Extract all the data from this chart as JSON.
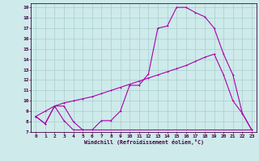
{
  "xlabel": "Windchill (Refroidissement éolien,°C)",
  "bg_color": "#ceeaea",
  "grid_color": "#aacece",
  "line_color": "#aa00aa",
  "xlim": [
    -0.5,
    23.5
  ],
  "ylim": [
    7,
    19.4
  ],
  "xticks": [
    0,
    1,
    2,
    3,
    4,
    5,
    6,
    7,
    8,
    9,
    10,
    11,
    12,
    13,
    14,
    15,
    16,
    17,
    18,
    19,
    20,
    21,
    22,
    23
  ],
  "yticks": [
    7,
    8,
    9,
    10,
    11,
    12,
    13,
    14,
    15,
    16,
    17,
    18,
    19
  ],
  "line1_x": [
    0,
    1,
    2,
    3,
    4,
    5,
    6,
    7,
    8,
    9,
    10,
    11,
    12,
    13,
    14,
    15,
    16,
    17,
    18,
    19,
    20,
    21,
    22,
    23
  ],
  "line1_y": [
    8.5,
    7.8,
    9.5,
    9.5,
    8.0,
    7.2,
    7.2,
    8.1,
    8.1,
    9.0,
    11.5,
    11.5,
    12.6,
    17.0,
    17.2,
    19.0,
    19.0,
    18.5,
    18.1,
    17.0,
    14.5,
    12.5,
    8.8,
    7.2
  ],
  "line2_x": [
    0,
    1,
    2,
    3,
    4,
    5,
    23
  ],
  "line2_y": [
    8.5,
    7.8,
    9.5,
    8.1,
    7.2,
    7.2,
    7.2
  ],
  "line3_x": [
    0,
    1,
    2,
    3,
    4,
    5,
    6,
    7,
    8,
    9,
    10,
    11,
    12,
    13,
    14,
    15,
    16,
    17,
    18,
    19,
    20,
    21,
    22,
    23
  ],
  "line3_y": [
    8.5,
    9.0,
    9.5,
    9.8,
    10.0,
    10.2,
    10.4,
    10.7,
    11.0,
    11.3,
    11.6,
    11.9,
    12.2,
    12.5,
    12.8,
    13.1,
    13.4,
    13.8,
    14.2,
    14.5,
    12.5,
    10.0,
    8.8,
    7.2
  ]
}
